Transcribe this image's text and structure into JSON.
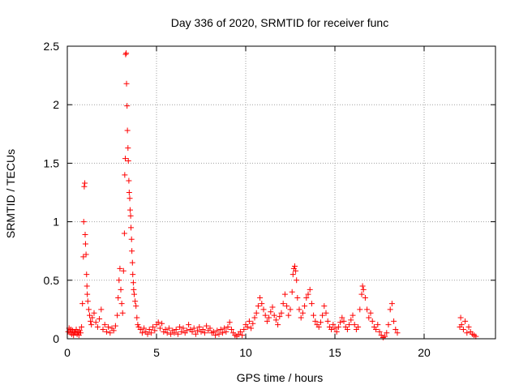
{
  "chart_data": {
    "type": "scatter",
    "title": "Day 336 of 2020, SRMTID for receiver func",
    "xlabel": "GPS time / hours",
    "ylabel": "SRMTID / TECUs",
    "xlim": [
      0,
      24
    ],
    "ylim": [
      0,
      2.5
    ],
    "xticks": [
      0,
      5,
      10,
      15,
      20
    ],
    "yticks": [
      0,
      0.5,
      1,
      1.5,
      2,
      2.5
    ],
    "xtick_labels": [
      "0",
      "5",
      "10",
      "15",
      "20"
    ],
    "ytick_labels": [
      "0",
      "0.5",
      "1",
      "1.5",
      "2",
      "2.5"
    ],
    "grid": true,
    "marker": "+",
    "color": "#ff0000",
    "series": [
      {
        "name": "SRMTID",
        "points": [
          [
            0.05,
            0.06
          ],
          [
            0.1,
            0.09
          ],
          [
            0.15,
            0.05
          ],
          [
            0.2,
            0.08
          ],
          [
            0.25,
            0.04
          ],
          [
            0.3,
            0.07
          ],
          [
            0.35,
            0.03
          ],
          [
            0.4,
            0.06
          ],
          [
            0.45,
            0.05
          ],
          [
            0.5,
            0.08
          ],
          [
            0.55,
            0.04
          ],
          [
            0.6,
            0.06
          ],
          [
            0.65,
            0.03
          ],
          [
            0.7,
            0.07
          ],
          [
            0.75,
            0.05
          ],
          [
            0.8,
            0.1
          ],
          [
            0.85,
            0.3
          ],
          [
            0.9,
            0.7
          ],
          [
            0.92,
            1.0
          ],
          [
            0.95,
            1.3
          ],
          [
            0.98,
            1.33
          ],
          [
            1.0,
            0.89
          ],
          [
            1.02,
            0.81
          ],
          [
            1.05,
            0.72
          ],
          [
            1.08,
            0.55
          ],
          [
            1.1,
            0.45
          ],
          [
            1.12,
            0.38
          ],
          [
            1.15,
            0.32
          ],
          [
            1.2,
            0.25
          ],
          [
            1.25,
            0.2
          ],
          [
            1.3,
            0.15
          ],
          [
            1.35,
            0.12
          ],
          [
            1.4,
            0.18
          ],
          [
            1.5,
            0.22
          ],
          [
            1.6,
            0.14
          ],
          [
            1.7,
            0.1
          ],
          [
            1.8,
            0.17
          ],
          [
            1.9,
            0.25
          ],
          [
            2.0,
            0.08
          ],
          [
            2.1,
            0.12
          ],
          [
            2.2,
            0.06
          ],
          [
            2.3,
            0.1
          ],
          [
            2.4,
            0.05
          ],
          [
            2.5,
            0.09
          ],
          [
            2.6,
            0.07
          ],
          [
            2.7,
            0.11
          ],
          [
            2.8,
            0.2
          ],
          [
            2.85,
            0.35
          ],
          [
            2.9,
            0.5
          ],
          [
            2.95,
            0.6
          ],
          [
            3.0,
            0.42
          ],
          [
            3.05,
            0.3
          ],
          [
            3.1,
            0.22
          ],
          [
            3.15,
            0.58
          ],
          [
            3.2,
            0.9
          ],
          [
            3.22,
            1.4
          ],
          [
            3.25,
            1.54
          ],
          [
            3.27,
            2.43
          ],
          [
            3.3,
            2.44
          ],
          [
            3.32,
            2.18
          ],
          [
            3.35,
            1.99
          ],
          [
            3.37,
            1.78
          ],
          [
            3.4,
            1.63
          ],
          [
            3.42,
            1.52
          ],
          [
            3.45,
            1.35
          ],
          [
            3.47,
            1.25
          ],
          [
            3.5,
            1.2
          ],
          [
            3.52,
            1.1
          ],
          [
            3.55,
            1.05
          ],
          [
            3.57,
            0.95
          ],
          [
            3.6,
            0.85
          ],
          [
            3.62,
            0.75
          ],
          [
            3.65,
            0.65
          ],
          [
            3.67,
            0.55
          ],
          [
            3.7,
            0.48
          ],
          [
            3.72,
            0.42
          ],
          [
            3.75,
            0.38
          ],
          [
            3.8,
            0.32
          ],
          [
            3.85,
            0.28
          ],
          [
            3.9,
            0.18
          ],
          [
            3.95,
            0.12
          ],
          [
            4.0,
            0.1
          ],
          [
            4.1,
            0.08
          ],
          [
            4.2,
            0.05
          ],
          [
            4.3,
            0.09
          ],
          [
            4.4,
            0.06
          ],
          [
            4.5,
            0.04
          ],
          [
            4.6,
            0.08
          ],
          [
            4.7,
            0.05
          ],
          [
            4.8,
            0.1
          ],
          [
            4.9,
            0.07
          ],
          [
            5.0,
            0.12
          ],
          [
            5.1,
            0.14
          ],
          [
            5.2,
            0.09
          ],
          [
            5.3,
            0.13
          ],
          [
            5.4,
            0.06
          ],
          [
            5.5,
            0.08
          ],
          [
            5.6,
            0.05
          ],
          [
            5.7,
            0.09
          ],
          [
            5.8,
            0.04
          ],
          [
            5.9,
            0.07
          ],
          [
            6.0,
            0.05
          ],
          [
            6.1,
            0.08
          ],
          [
            6.2,
            0.04
          ],
          [
            6.3,
            0.1
          ],
          [
            6.4,
            0.06
          ],
          [
            6.5,
            0.09
          ],
          [
            6.6,
            0.05
          ],
          [
            6.7,
            0.07
          ],
          [
            6.8,
            0.12
          ],
          [
            6.9,
            0.08
          ],
          [
            7.0,
            0.06
          ],
          [
            7.1,
            0.09
          ],
          [
            7.2,
            0.04
          ],
          [
            7.3,
            0.07
          ],
          [
            7.4,
            0.1
          ],
          [
            7.5,
            0.06
          ],
          [
            7.6,
            0.08
          ],
          [
            7.7,
            0.05
          ],
          [
            7.8,
            0.11
          ],
          [
            7.9,
            0.07
          ],
          [
            8.0,
            0.09
          ],
          [
            8.1,
            0.05
          ],
          [
            8.2,
            0.06
          ],
          [
            8.3,
            0.03
          ],
          [
            8.4,
            0.07
          ],
          [
            8.5,
            0.04
          ],
          [
            8.6,
            0.08
          ],
          [
            8.7,
            0.05
          ],
          [
            8.8,
            0.09
          ],
          [
            8.9,
            0.06
          ],
          [
            9.0,
            0.1
          ],
          [
            9.1,
            0.14
          ],
          [
            9.2,
            0.08
          ],
          [
            9.3,
            0.05
          ],
          [
            9.4,
            0.03
          ],
          [
            9.5,
            0.02
          ],
          [
            9.6,
            0.04
          ],
          [
            9.7,
            0.06
          ],
          [
            9.8,
            0.03
          ],
          [
            9.9,
            0.08
          ],
          [
            10.0,
            0.12
          ],
          [
            10.1,
            0.1
          ],
          [
            10.2,
            0.15
          ],
          [
            10.3,
            0.09
          ],
          [
            10.4,
            0.13
          ],
          [
            10.5,
            0.18
          ],
          [
            10.6,
            0.22
          ],
          [
            10.7,
            0.28
          ],
          [
            10.8,
            0.35
          ],
          [
            10.9,
            0.3
          ],
          [
            11.0,
            0.25
          ],
          [
            11.1,
            0.2
          ],
          [
            11.2,
            0.15
          ],
          [
            11.3,
            0.18
          ],
          [
            11.4,
            0.23
          ],
          [
            11.5,
            0.27
          ],
          [
            11.6,
            0.2
          ],
          [
            11.7,
            0.16
          ],
          [
            11.8,
            0.12
          ],
          [
            11.9,
            0.19
          ],
          [
            12.0,
            0.22
          ],
          [
            12.1,
            0.3
          ],
          [
            12.2,
            0.38
          ],
          [
            12.3,
            0.28
          ],
          [
            12.4,
            0.2
          ],
          [
            12.5,
            0.25
          ],
          [
            12.6,
            0.4
          ],
          [
            12.65,
            0.55
          ],
          [
            12.7,
            0.6
          ],
          [
            12.75,
            0.62
          ],
          [
            12.8,
            0.58
          ],
          [
            12.85,
            0.5
          ],
          [
            12.9,
            0.35
          ],
          [
            13.0,
            0.25
          ],
          [
            13.1,
            0.18
          ],
          [
            13.2,
            0.22
          ],
          [
            13.3,
            0.28
          ],
          [
            13.4,
            0.35
          ],
          [
            13.5,
            0.38
          ],
          [
            13.6,
            0.42
          ],
          [
            13.7,
            0.3
          ],
          [
            13.8,
            0.2
          ],
          [
            13.9,
            0.15
          ],
          [
            14.0,
            0.12
          ],
          [
            14.1,
            0.1
          ],
          [
            14.2,
            0.14
          ],
          [
            14.3,
            0.2
          ],
          [
            14.4,
            0.28
          ],
          [
            14.5,
            0.22
          ],
          [
            14.6,
            0.15
          ],
          [
            14.7,
            0.1
          ],
          [
            14.8,
            0.08
          ],
          [
            14.9,
            0.12
          ],
          [
            15.0,
            0.09
          ],
          [
            15.1,
            0.06
          ],
          [
            15.2,
            0.1
          ],
          [
            15.3,
            0.14
          ],
          [
            15.4,
            0.18
          ],
          [
            15.5,
            0.15
          ],
          [
            15.6,
            0.1
          ],
          [
            15.7,
            0.08
          ],
          [
            15.8,
            0.12
          ],
          [
            15.9,
            0.16
          ],
          [
            16.0,
            0.2
          ],
          [
            16.1,
            0.12
          ],
          [
            16.2,
            0.08
          ],
          [
            16.3,
            0.1
          ],
          [
            16.4,
            0.25
          ],
          [
            16.5,
            0.38
          ],
          [
            16.55,
            0.45
          ],
          [
            16.6,
            0.42
          ],
          [
            16.7,
            0.35
          ],
          [
            16.8,
            0.25
          ],
          [
            16.9,
            0.18
          ],
          [
            17.0,
            0.22
          ],
          [
            17.1,
            0.15
          ],
          [
            17.2,
            0.1
          ],
          [
            17.3,
            0.08
          ],
          [
            17.4,
            0.12
          ],
          [
            17.5,
            0.06
          ],
          [
            17.6,
            0.03
          ],
          [
            17.7,
            0.01
          ],
          [
            17.8,
            0.02
          ],
          [
            17.9,
            0.05
          ],
          [
            18.0,
            0.12
          ],
          [
            18.1,
            0.25
          ],
          [
            18.2,
            0.3
          ],
          [
            18.3,
            0.15
          ],
          [
            18.4,
            0.08
          ],
          [
            18.5,
            0.05
          ],
          [
            22.0,
            0.1
          ],
          [
            22.05,
            0.18
          ],
          [
            22.1,
            0.12
          ],
          [
            22.2,
            0.08
          ],
          [
            22.3,
            0.15
          ],
          [
            22.4,
            0.05
          ],
          [
            22.5,
            0.1
          ],
          [
            22.6,
            0.06
          ],
          [
            22.7,
            0.04
          ],
          [
            22.8,
            0.03
          ],
          [
            22.9,
            0.02
          ]
        ]
      }
    ]
  }
}
